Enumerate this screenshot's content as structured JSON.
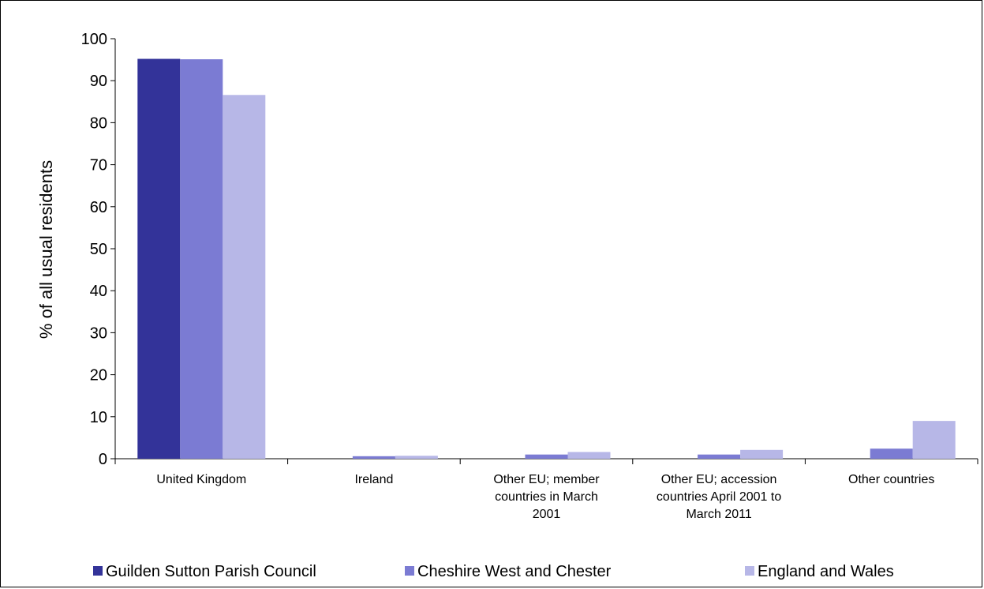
{
  "chart_data": {
    "type": "bar",
    "title": "",
    "xlabel": "",
    "ylabel": "% of all usual residents",
    "ylim": [
      0,
      100
    ],
    "yticks": [
      0,
      10,
      20,
      30,
      40,
      50,
      60,
      70,
      80,
      90,
      100
    ],
    "grid": false,
    "legend_position": "bottom",
    "categories": [
      [
        "United Kingdom"
      ],
      [
        "Ireland"
      ],
      [
        "Other EU; member",
        "countries in March",
        "2001"
      ],
      [
        "Other EU; accession",
        "countries April 2001 to",
        "March 2011"
      ],
      [
        "Other countries"
      ]
    ],
    "series": [
      {
        "name": "Guilden Sutton Parish Council",
        "color": "#333399",
        "values": [
          95.2,
          0.0,
          0.0,
          0.0,
          0.0
        ]
      },
      {
        "name": "Cheshire West and Chester",
        "color": "#7B7BD3",
        "values": [
          95.1,
          0.6,
          1.0,
          1.0,
          2.4
        ]
      },
      {
        "name": "England and Wales",
        "color": "#B7B7E7",
        "values": [
          86.6,
          0.7,
          1.6,
          2.1,
          9.0
        ]
      }
    ]
  }
}
